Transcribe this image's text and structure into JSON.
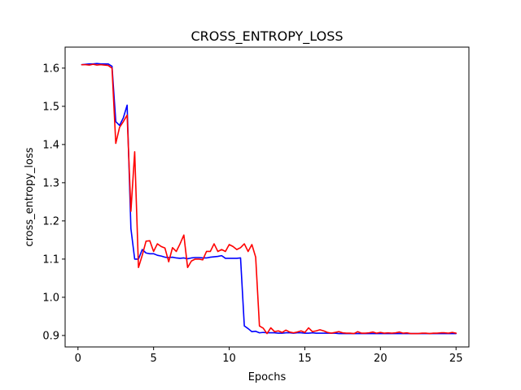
{
  "chart_data": {
    "type": "line",
    "title": "CROSS_ENTROPY_LOSS",
    "xlabel": "Epochs",
    "ylabel": "cross_entropy_loss",
    "xlim": [
      -0.85,
      25.85
    ],
    "ylim": [
      0.87,
      1.655
    ],
    "xticks": [
      0,
      5,
      10,
      15,
      20,
      25
    ],
    "yticks": [
      0.9,
      1.0,
      1.1,
      1.2,
      1.3,
      1.4,
      1.5,
      1.6
    ],
    "grid": false,
    "legend": "none",
    "series": [
      {
        "color": "#0000ff",
        "x": [
          0.25,
          0.5,
          0.75,
          1.0,
          1.25,
          1.5,
          1.75,
          2.0,
          2.25,
          2.5,
          2.75,
          3.0,
          3.25,
          3.5,
          3.75,
          4.0,
          4.25,
          4.5,
          4.75,
          5.0,
          5.25,
          5.5,
          5.75,
          6.0,
          6.25,
          6.5,
          6.75,
          7.0,
          7.25,
          7.5,
          7.75,
          8.0,
          8.25,
          8.5,
          8.75,
          9.0,
          9.25,
          9.5,
          9.75,
          10.0,
          10.25,
          10.5,
          10.75,
          11.0,
          11.25,
          11.5,
          11.75,
          12.0,
          12.25,
          12.5,
          12.75,
          13.0,
          13.25,
          13.5,
          13.75,
          14.0,
          14.25,
          14.5,
          14.75,
          15.0,
          15.25,
          15.5,
          15.75,
          16.0,
          16.25,
          16.5,
          16.75,
          17.0,
          17.25,
          17.5,
          17.75,
          18.0,
          18.25,
          18.5,
          18.75,
          19.0,
          19.25,
          19.5,
          19.75,
          20.0,
          20.25,
          20.5,
          20.75,
          21.0,
          21.25,
          21.5,
          21.75,
          22.0,
          22.25,
          22.5,
          22.75,
          23.0,
          23.25,
          23.5,
          23.75,
          24.0,
          24.25,
          24.5,
          24.75,
          25.0
        ],
        "y": [
          1.609,
          1.61,
          1.611,
          1.611,
          1.612,
          1.611,
          1.611,
          1.611,
          1.605,
          1.46,
          1.45,
          1.47,
          1.503,
          1.18,
          1.1,
          1.1,
          1.125,
          1.116,
          1.114,
          1.114,
          1.11,
          1.108,
          1.105,
          1.104,
          1.105,
          1.103,
          1.102,
          1.103,
          1.101,
          1.103,
          1.104,
          1.104,
          1.103,
          1.103,
          1.105,
          1.106,
          1.107,
          1.109,
          1.102,
          1.102,
          1.102,
          1.102,
          1.103,
          0.925,
          0.918,
          0.91,
          0.911,
          0.907,
          0.908,
          0.907,
          0.907,
          0.907,
          0.906,
          0.906,
          0.907,
          0.907,
          0.906,
          0.907,
          0.907,
          0.906,
          0.906,
          0.907,
          0.906,
          0.906,
          0.906,
          0.906,
          0.906,
          0.906,
          0.905,
          0.905,
          0.905,
          0.905,
          0.905,
          0.905,
          0.905,
          0.905,
          0.905,
          0.905,
          0.905,
          0.905,
          0.905,
          0.905,
          0.905,
          0.905,
          0.905,
          0.905,
          0.905,
          0.905,
          0.905,
          0.905,
          0.905,
          0.905,
          0.905,
          0.905,
          0.905,
          0.905,
          0.905,
          0.905,
          0.905,
          0.905
        ]
      },
      {
        "color": "#ff0000",
        "x": [
          0.25,
          0.5,
          0.75,
          1.0,
          1.25,
          1.5,
          1.75,
          2.0,
          2.25,
          2.5,
          2.75,
          3.0,
          3.25,
          3.5,
          3.75,
          4.0,
          4.25,
          4.5,
          4.75,
          5.0,
          5.25,
          5.5,
          5.75,
          6.0,
          6.25,
          6.5,
          6.75,
          7.0,
          7.25,
          7.5,
          7.75,
          8.0,
          8.25,
          8.5,
          8.75,
          9.0,
          9.25,
          9.5,
          9.75,
          10.0,
          10.25,
          10.5,
          10.75,
          11.0,
          11.25,
          11.5,
          11.75,
          12.0,
          12.25,
          12.5,
          12.75,
          13.0,
          13.25,
          13.5,
          13.75,
          14.0,
          14.25,
          14.5,
          14.75,
          15.0,
          15.25,
          15.5,
          15.75,
          16.0,
          16.25,
          16.5,
          16.75,
          17.0,
          17.25,
          17.5,
          17.75,
          18.0,
          18.25,
          18.5,
          18.75,
          19.0,
          19.25,
          19.5,
          19.75,
          20.0,
          20.25,
          20.5,
          20.75,
          21.0,
          21.25,
          21.5,
          21.75,
          22.0,
          22.25,
          22.5,
          22.75,
          23.0,
          23.25,
          23.5,
          23.75,
          24.0,
          24.25,
          24.5,
          24.75,
          25.0
        ],
        "y": [
          1.609,
          1.609,
          1.608,
          1.61,
          1.608,
          1.609,
          1.608,
          1.607,
          1.6,
          1.403,
          1.445,
          1.46,
          1.477,
          1.225,
          1.381,
          1.078,
          1.11,
          1.147,
          1.148,
          1.12,
          1.14,
          1.133,
          1.129,
          1.093,
          1.13,
          1.12,
          1.14,
          1.163,
          1.078,
          1.095,
          1.1,
          1.1,
          1.098,
          1.12,
          1.12,
          1.14,
          1.12,
          1.125,
          1.12,
          1.138,
          1.133,
          1.125,
          1.13,
          1.14,
          1.12,
          1.138,
          1.105,
          0.925,
          0.919,
          0.905,
          0.92,
          0.91,
          0.912,
          0.908,
          0.914,
          0.909,
          0.907,
          0.909,
          0.912,
          0.908,
          0.92,
          0.91,
          0.912,
          0.915,
          0.912,
          0.908,
          0.906,
          0.908,
          0.91,
          0.907,
          0.906,
          0.906,
          0.905,
          0.91,
          0.906,
          0.906,
          0.907,
          0.909,
          0.906,
          0.908,
          0.906,
          0.907,
          0.906,
          0.907,
          0.909,
          0.906,
          0.907,
          0.905,
          0.905,
          0.905,
          0.906,
          0.906,
          0.905,
          0.906,
          0.906,
          0.907,
          0.907,
          0.906,
          0.908,
          0.906
        ]
      }
    ]
  }
}
